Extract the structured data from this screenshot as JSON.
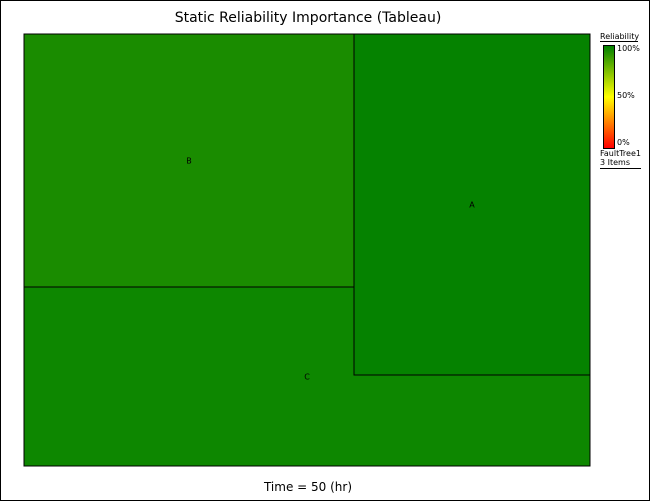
{
  "chart_data": {
    "type": "treemap",
    "title": "Static Reliability Importance (Tableau)",
    "footer": "Time = 50 (hr)",
    "items": [
      {
        "name": "B",
        "color": "#1a8c00"
      },
      {
        "name": "A",
        "color": "#058200"
      },
      {
        "name": "C",
        "color": "#0d8700"
      }
    ],
    "legend": {
      "title": "Reliability",
      "ticks": [
        "100%",
        "50%",
        "0%"
      ],
      "tree_name": "FaultTree1",
      "item_count": "3 Items",
      "placement": "right"
    }
  }
}
